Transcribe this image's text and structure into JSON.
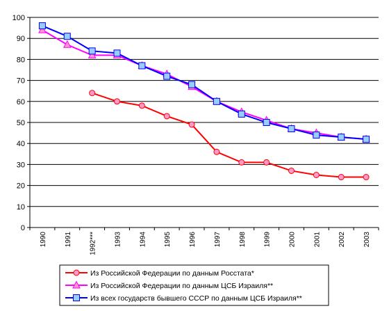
{
  "chart_data": {
    "type": "line",
    "title": "",
    "xlabel": "",
    "ylabel": "",
    "ylim": [
      0,
      100
    ],
    "yticks": [
      0,
      10,
      20,
      30,
      40,
      50,
      60,
      70,
      80,
      90,
      100
    ],
    "grid": true,
    "legend_position": "bottom",
    "categories": [
      "1990",
      "1991",
      "1992***",
      "1993",
      "1994",
      "1995",
      "1996",
      "1997",
      "1998",
      "1999",
      "2000",
      "2001",
      "2002",
      "2003"
    ],
    "series": [
      {
        "name": "Из Российской Федерации по данным Росстата*",
        "color": "#ff0000",
        "marker": "circle",
        "marker_fill": "#ff99cc",
        "values": [
          null,
          null,
          64,
          60,
          58,
          53,
          49,
          36,
          31,
          31,
          27,
          25,
          24,
          24
        ]
      },
      {
        "name": "Из Российской Федерации по данным ЦСБ Израиля**",
        "color": "#ff00ff",
        "marker": "triangle",
        "marker_fill": "#ff99cc",
        "values": [
          94,
          87,
          82,
          82,
          77,
          73,
          67,
          60,
          55,
          51,
          47,
          45,
          43,
          42
        ]
      },
      {
        "name": "Из всех государств бывшего СССР по данным ЦСБ Израиля**",
        "color": "#0000ff",
        "marker": "square",
        "marker_fill": "#99ccff",
        "values": [
          96,
          91,
          84,
          83,
          77,
          72,
          68,
          60,
          54,
          50,
          47,
          44,
          43,
          42
        ]
      }
    ]
  }
}
